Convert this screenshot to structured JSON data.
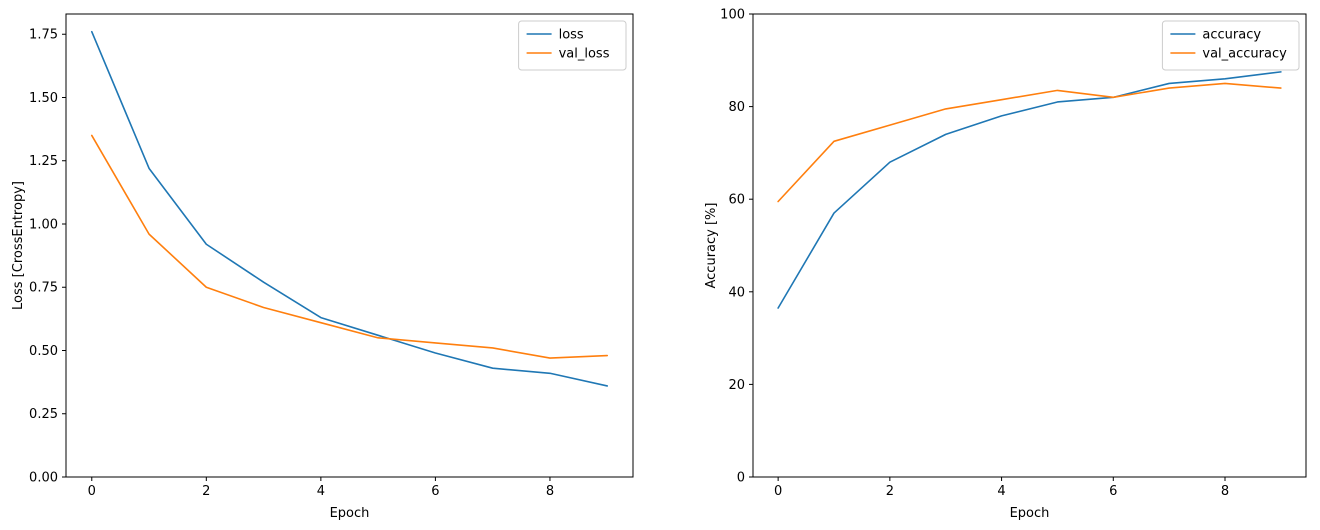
{
  "figure": {
    "background": "#ffffff"
  },
  "chart_data": [
    {
      "id": "loss-chart",
      "type": "line",
      "title": "",
      "xlabel": "Epoch",
      "ylabel": "Loss [CrossEntropy]",
      "xlim": [
        -0.45,
        9.45
      ],
      "ylim": [
        0,
        1.83
      ],
      "grid": false,
      "legend_position": "upper right",
      "xticks": {
        "values": [
          0,
          2,
          4,
          6,
          8
        ],
        "labels": [
          "0",
          "2",
          "4",
          "6",
          "8"
        ]
      },
      "yticks": {
        "values": [
          0,
          0.25,
          0.5,
          0.75,
          1.0,
          1.25,
          1.5,
          1.75
        ],
        "labels": [
          "0.00",
          "0.25",
          "0.50",
          "0.75",
          "1.00",
          "1.25",
          "1.50",
          "1.75"
        ]
      },
      "x": [
        0,
        1,
        2,
        3,
        4,
        5,
        6,
        7,
        8,
        9
      ],
      "series": [
        {
          "name": "loss",
          "color": "#1f77b4",
          "values": [
            1.76,
            1.22,
            0.92,
            0.77,
            0.63,
            0.56,
            0.49,
            0.43,
            0.41,
            0.36
          ]
        },
        {
          "name": "val_loss",
          "color": "#ff7f0e",
          "values": [
            1.35,
            0.96,
            0.75,
            0.67,
            0.61,
            0.55,
            0.53,
            0.51,
            0.47,
            0.48
          ]
        }
      ]
    },
    {
      "id": "accuracy-chart",
      "type": "line",
      "title": "",
      "xlabel": "Epoch",
      "ylabel": "Accuracy [%]",
      "xlim": [
        -0.45,
        9.45
      ],
      "ylim": [
        0,
        100
      ],
      "grid": false,
      "legend_position": "upper right",
      "xticks": {
        "values": [
          0,
          2,
          4,
          6,
          8
        ],
        "labels": [
          "0",
          "2",
          "4",
          "6",
          "8"
        ]
      },
      "yticks": {
        "values": [
          0,
          20,
          40,
          60,
          80,
          100
        ],
        "labels": [
          "0",
          "20",
          "40",
          "60",
          "80",
          "100"
        ]
      },
      "x": [
        0,
        1,
        2,
        3,
        4,
        5,
        6,
        7,
        8,
        9
      ],
      "series": [
        {
          "name": "accuracy",
          "color": "#1f77b4",
          "values": [
            36.5,
            57,
            68,
            74,
            78,
            81,
            82,
            85,
            86,
            87.5
          ]
        },
        {
          "name": "val_accuracy",
          "color": "#ff7f0e",
          "values": [
            59.5,
            72.5,
            76,
            79.5,
            81.5,
            83.5,
            82,
            84,
            85,
            84
          ]
        }
      ]
    }
  ]
}
